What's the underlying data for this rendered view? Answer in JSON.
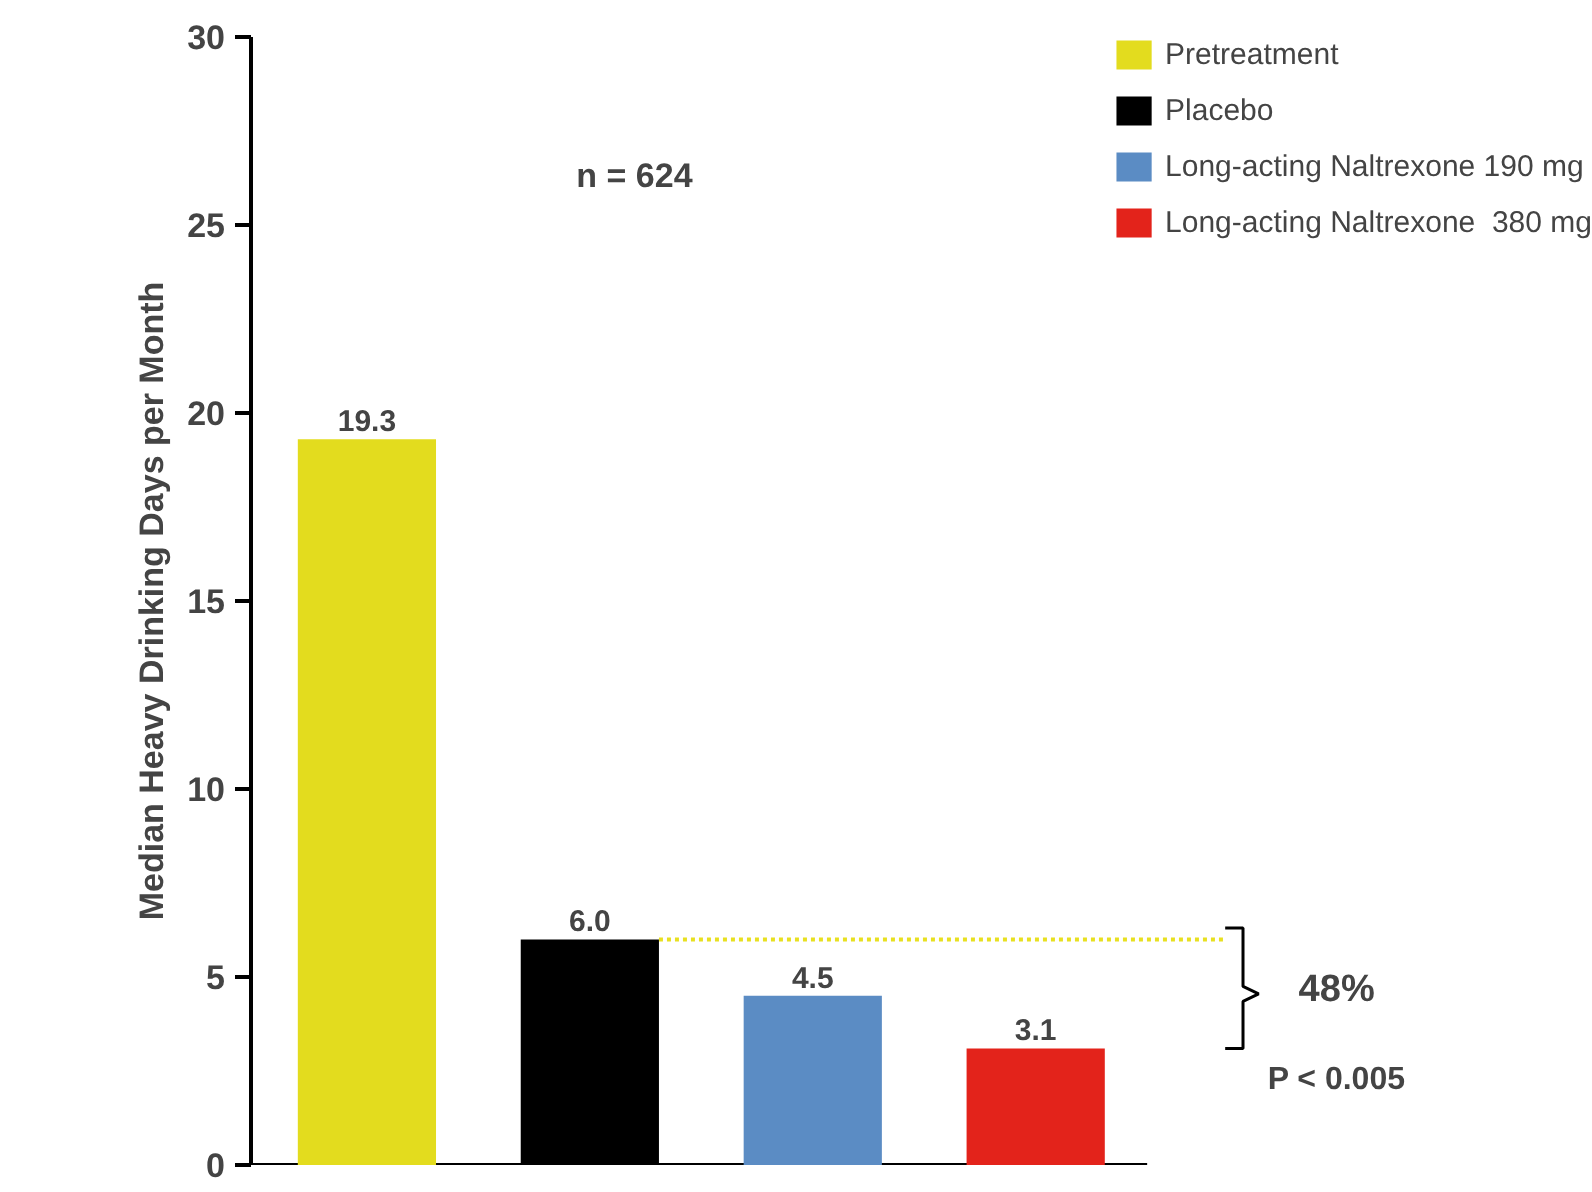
{
  "chart_data": {
    "type": "bar",
    "ylabel": "Median Heavy Drinking Days per Month",
    "categories": [
      null,
      null,
      null,
      null
    ],
    "series": [
      {
        "name": "Pretreatment",
        "color": "#e3dc1e",
        "values": [
          19.3,
          null,
          null,
          null
        ],
        "value_labels": [
          "19.3",
          null,
          null,
          null
        ]
      },
      {
        "name": "Placebo",
        "color": "#000000",
        "values": [
          null,
          6.0,
          null,
          null
        ],
        "value_labels": [
          null,
          "6.0",
          null,
          null
        ]
      },
      {
        "name": "Long-acting Naltrexone 190 mg",
        "color": "#5b8cc4",
        "values": [
          null,
          null,
          4.5,
          null
        ],
        "value_labels": [
          null,
          null,
          "4.5",
          null
        ]
      },
      {
        "name": "Long-acting Naltrexone  380 mg",
        "color": "#e3231b",
        "values": [
          null,
          null,
          null,
          3.1
        ],
        "value_labels": [
          null,
          null,
          null,
          "3.1"
        ]
      }
    ],
    "ref_lines": [
      {
        "axis": "y",
        "value": 6.0,
        "color": "#e8e020",
        "line_style": "dotted"
      }
    ],
    "ylim": [
      0,
      30
    ],
    "yticks": [
      0,
      5,
      10,
      15,
      20,
      25,
      30
    ],
    "grid": false,
    "legend": "top right",
    "annotations": [
      "n = 624",
      "48%",
      "P < 0.005"
    ]
  }
}
